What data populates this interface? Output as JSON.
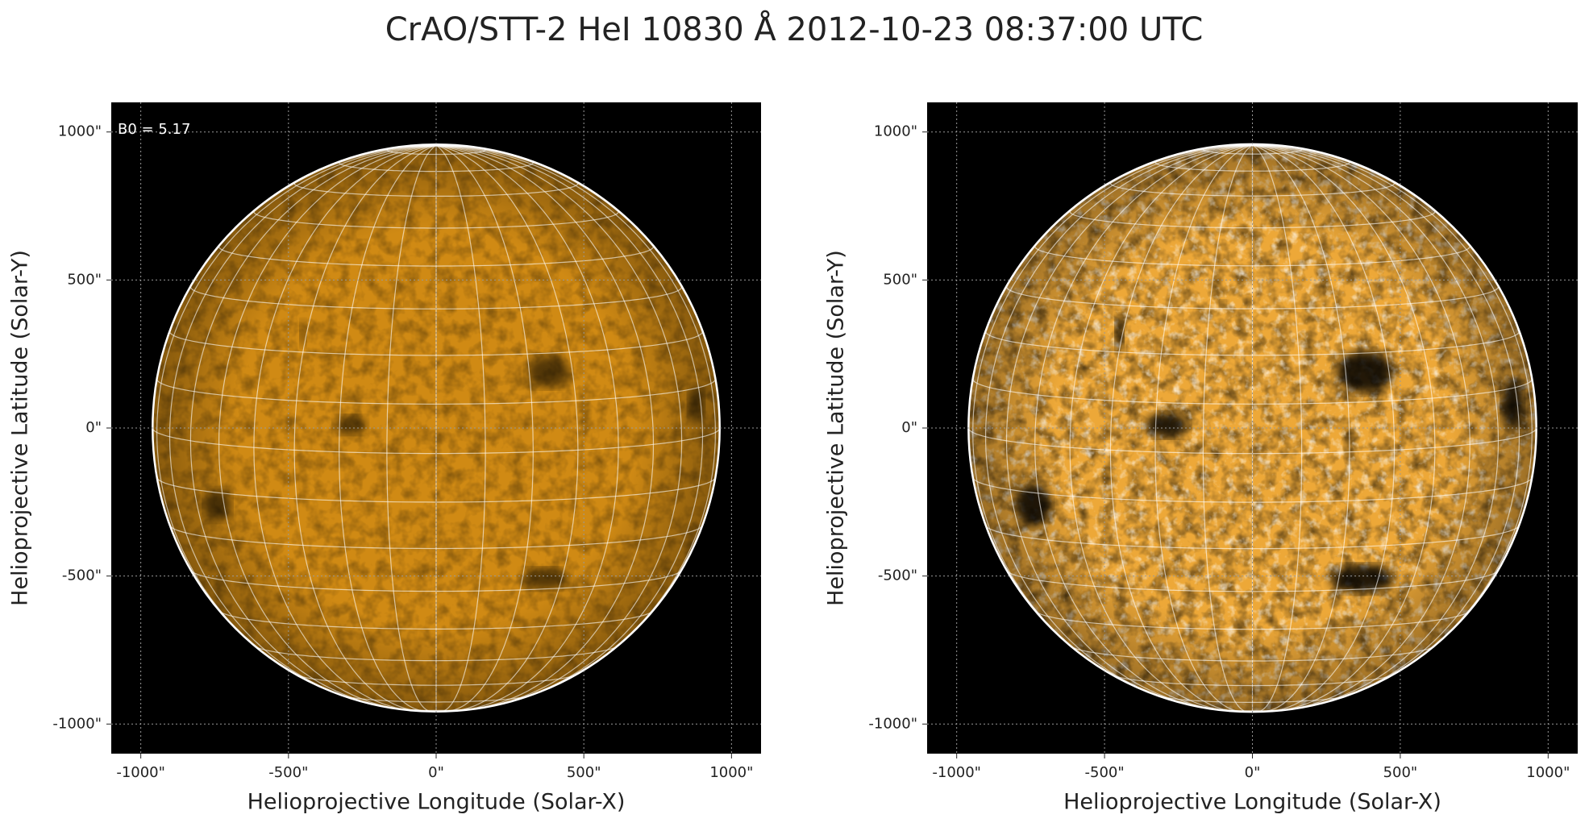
{
  "title": "CrAO/STT-2 HeI 10830 Å 2012-10-23 08:37:00 UTC",
  "chart_data": [
    {
      "type": "image",
      "annotation": "B0 = 5.17",
      "xlabel": "Helioprojective Longitude (Solar-X)",
      "ylabel": "Helioprojective Latitude (Solar-Y)",
      "xlim": [
        -1100,
        1100
      ],
      "ylim": [
        -1100,
        1100
      ],
      "xticks": [
        {
          "value": -1000,
          "label": "-1000\""
        },
        {
          "value": -500,
          "label": "-500\""
        },
        {
          "value": 0,
          "label": "0\""
        },
        {
          "value": 500,
          "label": "500\""
        },
        {
          "value": 1000,
          "label": "1000\""
        }
      ],
      "yticks": [
        {
          "value": -1000,
          "label": "-1000\""
        },
        {
          "value": -500,
          "label": "-500\""
        },
        {
          "value": 0,
          "label": "0\""
        },
        {
          "value": 500,
          "label": "500\""
        },
        {
          "value": 1000,
          "label": "1000\""
        }
      ],
      "grid": true,
      "color": "#d08a14"
    },
    {
      "type": "image",
      "xlabel": "Helioprojective Longitude (Solar-X)",
      "ylabel": "Helioprojective Latitude (Solar-Y)",
      "xlim": [
        -1100,
        1100
      ],
      "ylim": [
        -1100,
        1100
      ],
      "xticks": [
        {
          "value": -1000,
          "label": "-1000\""
        },
        {
          "value": -500,
          "label": "-500\""
        },
        {
          "value": 0,
          "label": "0\""
        },
        {
          "value": 500,
          "label": "500\""
        },
        {
          "value": 1000,
          "label": "1000\""
        }
      ],
      "yticks": [
        {
          "value": -1000,
          "label": "-1000\""
        },
        {
          "value": -500,
          "label": "-500\""
        },
        {
          "value": 0,
          "label": "0\""
        },
        {
          "value": 500,
          "label": "500\""
        },
        {
          "value": 1000,
          "label": "1000\""
        }
      ],
      "grid": true,
      "color": "#eda838"
    }
  ]
}
